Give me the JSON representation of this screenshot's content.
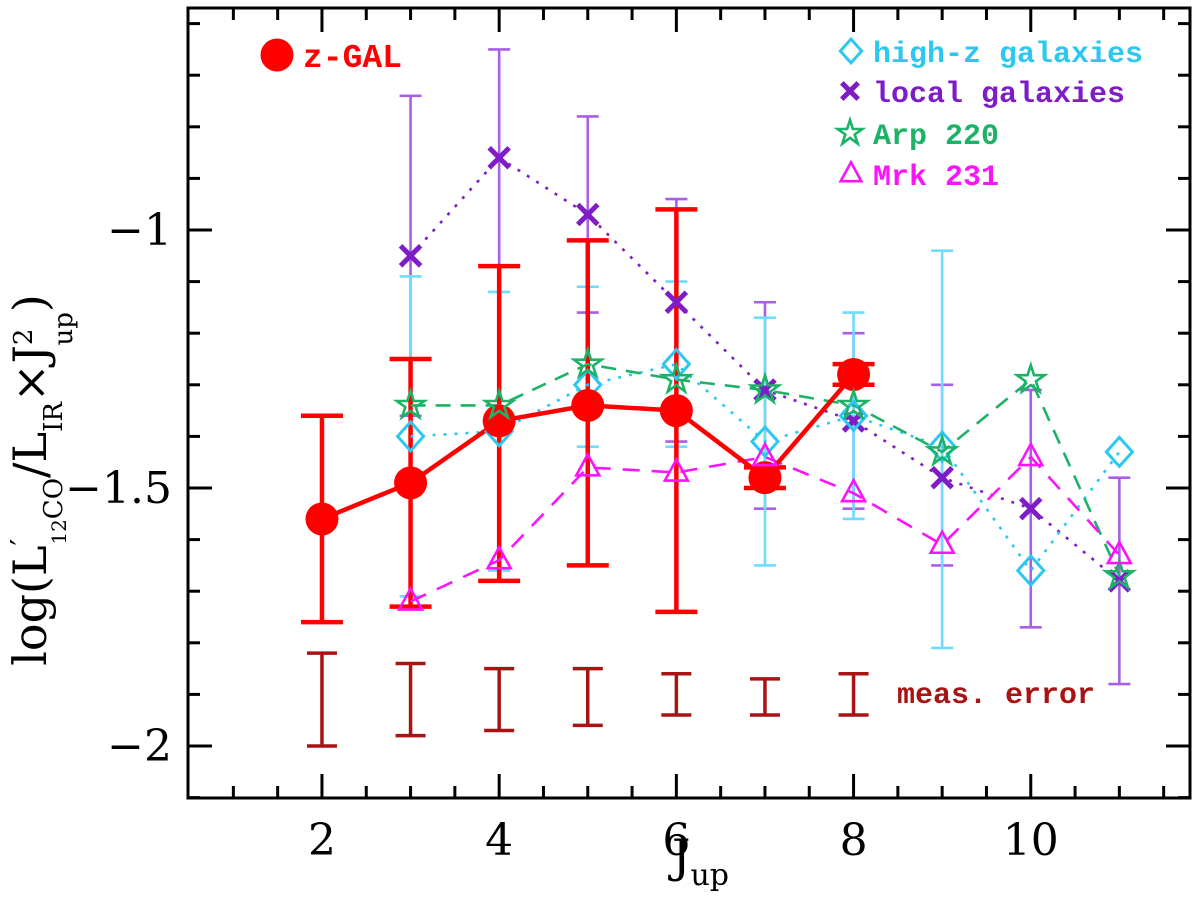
{
  "axes": {
    "x": {
      "title_main": "J",
      "title_sub": "up",
      "major_ticks": [
        2,
        4,
        6,
        8,
        10
      ],
      "tick_labels": [
        "2",
        "4",
        "6",
        "8",
        "10"
      ],
      "range": [
        0.49,
        11.8
      ],
      "minor_step": 0.5
    },
    "y": {
      "title_parts": {
        "p1": "log(L",
        "prime": "′",
        "iso": "12",
        "mol": "CO",
        "p2": "/L",
        "sub2": "IR",
        "p3": "×J",
        "sup": "2",
        "sub3": "up",
        "p4": ")"
      },
      "major_ticks": [
        -1,
        -1.5,
        -2
      ],
      "tick_labels": [
        "−1",
        "−1.5",
        "−2"
      ],
      "range": [
        -2.1,
        -0.57
      ],
      "minor_step": 0.1
    }
  },
  "chart_data": {
    "type": "line",
    "title": "",
    "xlabel": "J_up",
    "ylabel": "log(L'_12CO / L_IR x J^2_up)",
    "xlim": [
      0.49,
      11.8
    ],
    "ylim": [
      -2.1,
      -0.57
    ],
    "grid": false,
    "legend_position": "top-left and top-right, inside axes",
    "series": [
      {
        "name": "z-GAL",
        "color": "#ff0000",
        "err_color": "#ff0000",
        "marker": "circle",
        "line": "solid",
        "x": [
          2,
          3,
          4,
          5,
          6,
          7,
          8
        ],
        "y": [
          -1.56,
          -1.49,
          -1.37,
          -1.34,
          -1.35,
          -1.48,
          -1.28
        ],
        "err_top": [
          -1.36,
          -1.25,
          -1.07,
          -1.02,
          -0.96,
          -1.46,
          -1.26
        ],
        "err_bot": [
          -1.76,
          -1.73,
          -1.68,
          -1.65,
          -1.74,
          -1.5,
          -1.3
        ]
      },
      {
        "name": "high-z galaxies",
        "color": "#2cc8f2",
        "err_color": "#6edcfb",
        "marker": "diamond",
        "line": "dotted",
        "x": [
          3,
          4,
          5,
          6,
          7,
          8,
          9,
          10,
          11
        ],
        "y": [
          -1.4,
          -1.39,
          -1.3,
          -1.26,
          -1.41,
          -1.36,
          -1.42,
          -1.66,
          -1.43
        ],
        "err_top": [
          -1.09,
          -1.12,
          -1.11,
          -1.1,
          -1.17,
          -1.16,
          -1.04,
          null,
          null
        ],
        "err_bot": [
          -1.71,
          -1.66,
          -1.42,
          -1.42,
          -1.65,
          -1.56,
          -1.81,
          null,
          null
        ]
      },
      {
        "name": "local galaxies",
        "color": "#7e1dc8",
        "err_color": "#a95fe3",
        "marker": "x",
        "line": "dotted",
        "x": [
          3,
          4,
          5,
          6,
          7,
          8,
          9,
          10,
          11
        ],
        "y": [
          -1.05,
          -0.86,
          -0.97,
          -1.14,
          -1.31,
          -1.37,
          -1.48,
          -1.54,
          -1.68
        ],
        "err_top": [
          -0.74,
          -0.65,
          -0.78,
          -0.94,
          -1.14,
          -1.2,
          -1.3,
          -1.31,
          -1.48
        ],
        "err_bot": [
          -1.36,
          -1.07,
          -1.16,
          -1.41,
          -1.54,
          -1.54,
          -1.65,
          -1.77,
          -1.88
        ]
      },
      {
        "name": "Arp 220",
        "color": "#1cb268",
        "err_color": null,
        "marker": "star",
        "line": "dash-long",
        "x": [
          3,
          4,
          5,
          6,
          7,
          8,
          9,
          10,
          11
        ],
        "y": [
          -1.34,
          -1.34,
          -1.26,
          -1.29,
          -1.31,
          -1.34,
          -1.43,
          -1.29,
          -1.67
        ]
      },
      {
        "name": "Mrk 231",
        "color": "#fa14fa",
        "err_color": null,
        "marker": "triangle",
        "line": "dash",
        "x": [
          3,
          4,
          5,
          6,
          7,
          8,
          9,
          10,
          11
        ],
        "y": [
          -1.72,
          -1.64,
          -1.46,
          -1.47,
          -1.44,
          -1.51,
          -1.61,
          -1.44,
          -1.63
        ]
      }
    ],
    "meas_error": {
      "label": "meas. error",
      "color": "#a81414",
      "x": [
        2,
        3,
        4,
        5,
        6,
        7,
        8
      ],
      "y_top": [
        -1.82,
        -1.84,
        -1.85,
        -1.85,
        -1.86,
        -1.87,
        -1.86
      ],
      "y_bot": [
        -2.0,
        -1.98,
        -1.97,
        -1.96,
        -1.94,
        -1.94,
        -1.94
      ]
    }
  }
}
